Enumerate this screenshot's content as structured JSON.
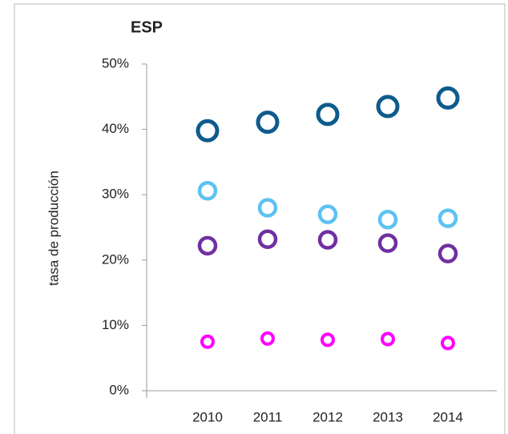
{
  "chart_data": {
    "type": "scatter",
    "title": "ESP",
    "y_label": "tasa de producción",
    "categories": [
      "2010",
      "2011",
      "2012",
      "2013",
      "2014"
    ],
    "series": [
      {
        "color": "#0f5b8c",
        "values": [
          39.8,
          41.1,
          42.3,
          43.5,
          44.8
        ]
      },
      {
        "color": "#5ec2f2",
        "values": [
          30.6,
          28.0,
          27.0,
          26.2,
          26.4
        ]
      },
      {
        "color": "#7030a0",
        "values": [
          22.2,
          23.2,
          23.1,
          22.6,
          21.0
        ]
      },
      {
        "color": "#ff00ff",
        "values": [
          7.5,
          8.0,
          7.8,
          7.9,
          7.3
        ]
      }
    ],
    "ylim": [
      0,
      50
    ],
    "yticks": [
      {
        "value": 0,
        "label": "0%"
      },
      {
        "value": 10,
        "label": "10%"
      },
      {
        "value": 20,
        "label": "20%"
      },
      {
        "value": 30,
        "label": "30%"
      },
      {
        "value": 40,
        "label": "40%"
      },
      {
        "value": 50,
        "label": "50%"
      }
    ]
  }
}
